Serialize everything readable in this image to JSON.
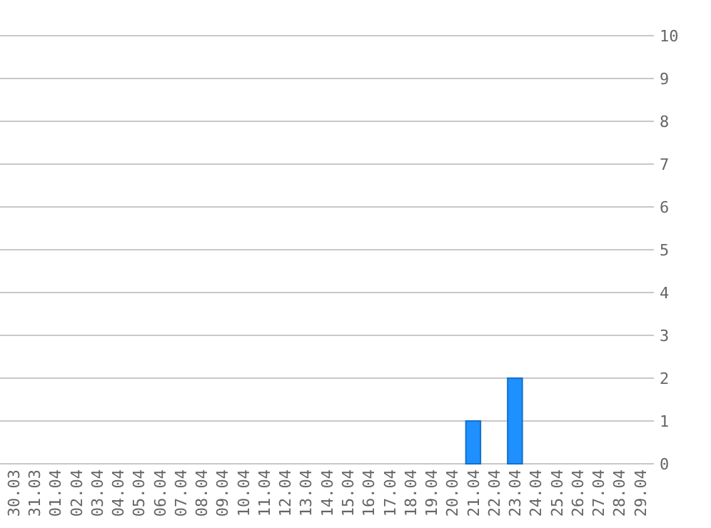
{
  "chart_data": {
    "type": "bar",
    "categories": [
      "30.03",
      "31.03",
      "01.04",
      "02.04",
      "03.04",
      "04.04",
      "05.04",
      "06.04",
      "07.04",
      "08.04",
      "09.04",
      "10.04",
      "11.04",
      "12.04",
      "13.04",
      "14.04",
      "15.04",
      "16.04",
      "17.04",
      "18.04",
      "19.04",
      "20.04",
      "21.04",
      "22.04",
      "23.04",
      "24.04",
      "25.04",
      "26.04",
      "27.04",
      "28.04",
      "29.04"
    ],
    "values": [
      0,
      0,
      0,
      0,
      0,
      0,
      0,
      0,
      0,
      0,
      0,
      0,
      0,
      0,
      0,
      0,
      0,
      0,
      0,
      0,
      0,
      0,
      1,
      0,
      2,
      0,
      0,
      0,
      0,
      0,
      0
    ],
    "color": "#1e90ff",
    "ylim": [
      0,
      10
    ],
    "yticks": [
      0,
      1,
      2,
      3,
      4,
      5,
      6,
      7,
      8,
      9,
      10
    ],
    "grid": "y"
  }
}
